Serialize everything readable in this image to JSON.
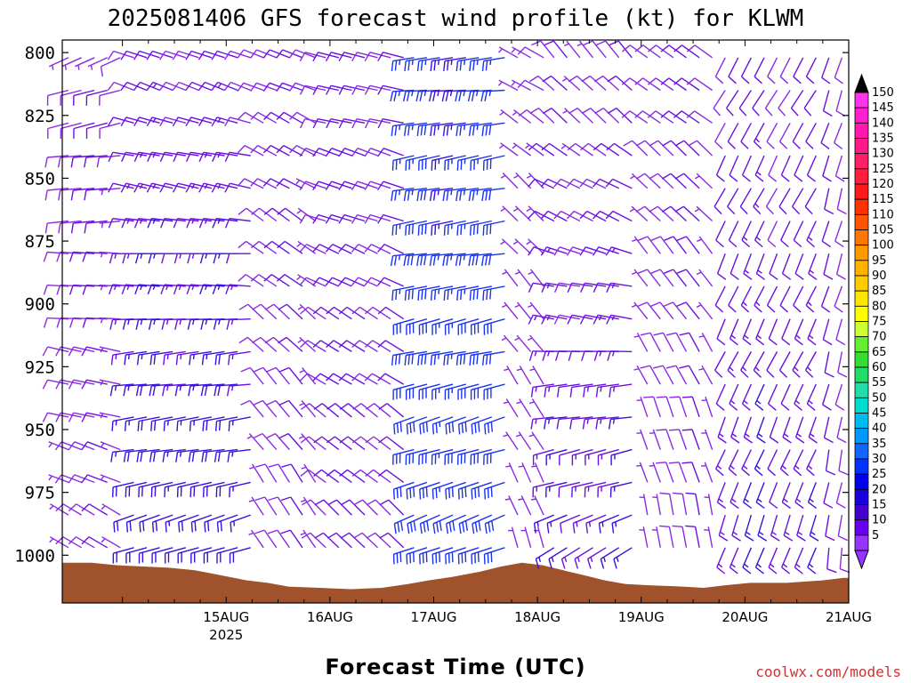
{
  "chart_data": {
    "type": "wind-barb-time-height",
    "title": "2025081406 GFS forecast wind profile (kt) for KLWM",
    "xlabel": "Forecast Time (UTC)",
    "ylabel": "",
    "credit": "coolwx.com/models",
    "x_ticks": [
      {
        "label": "15AUG",
        "sub": "2025",
        "day": 1
      },
      {
        "label": "16AUG",
        "sub": "",
        "day": 2
      },
      {
        "label": "17AUG",
        "sub": "",
        "day": 3
      },
      {
        "label": "18AUG",
        "sub": "",
        "day": 4
      },
      {
        "label": "19AUG",
        "sub": "",
        "day": 5
      },
      {
        "label": "20AUG",
        "sub": "",
        "day": 6
      },
      {
        "label": "21AUG",
        "sub": "",
        "day": 7
      }
    ],
    "x_range_days": [
      -0.58,
      7.0
    ],
    "pressure_levels": [
      800,
      825,
      850,
      875,
      900,
      925,
      950,
      975,
      1000
    ],
    "y_range_hpa": [
      795,
      1019
    ],
    "barb_levels_hpa": [
      802,
      815,
      828,
      841,
      854,
      867,
      880,
      893,
      906,
      919,
      932,
      945,
      958,
      971,
      984,
      997
    ],
    "colorbar": {
      "labels": [
        150,
        145,
        140,
        135,
        130,
        125,
        120,
        115,
        110,
        105,
        100,
        95,
        90,
        85,
        80,
        75,
        70,
        65,
        60,
        55,
        50,
        45,
        40,
        35,
        30,
        25,
        20,
        15,
        10,
        5
      ],
      "colors": [
        "#ff33ee",
        "#ff1fcf",
        "#ff17b0",
        "#ff1a8c",
        "#ff1f66",
        "#ff1f3d",
        "#ff1a1a",
        "#ff3300",
        "#ff5500",
        "#ff7700",
        "#ff9900",
        "#ffb300",
        "#ffcc00",
        "#ffe600",
        "#ffff00",
        "#ccff33",
        "#66ee33",
        "#33dd33",
        "#22dd66",
        "#22ddaa",
        "#00ddcc",
        "#00bbee",
        "#0099ff",
        "#1166ff",
        "#0033ff",
        "#0000ee",
        "#1a00dd",
        "#4400cc",
        "#6600ee",
        "#9933ff"
      ],
      "top_color": "#000000",
      "bottom_color": "#9933ff"
    },
    "terrain_color": "#a0522d",
    "terrain_hpa": [
      [
        -0.58,
        1003
      ],
      [
        -0.3,
        1003
      ],
      [
        -0.05,
        1004
      ],
      [
        0.2,
        1004.5
      ],
      [
        0.45,
        1005
      ],
      [
        0.7,
        1006
      ],
      [
        0.95,
        1008
      ],
      [
        1.2,
        1010
      ],
      [
        1.4,
        1011
      ],
      [
        1.6,
        1012.5
      ],
      [
        1.9,
        1013
      ],
      [
        2.2,
        1013.5
      ],
      [
        2.5,
        1013
      ],
      [
        2.75,
        1011.5
      ],
      [
        2.95,
        1010
      ],
      [
        3.2,
        1008.5
      ],
      [
        3.45,
        1006.5
      ],
      [
        3.65,
        1004.5
      ],
      [
        3.85,
        1003
      ],
      [
        4.05,
        1004
      ],
      [
        4.25,
        1006
      ],
      [
        4.45,
        1008
      ],
      [
        4.65,
        1010
      ],
      [
        4.85,
        1011.5
      ],
      [
        5.1,
        1012
      ],
      [
        5.4,
        1012.5
      ],
      [
        5.6,
        1013
      ],
      [
        5.8,
        1012
      ],
      [
        6.05,
        1011
      ],
      [
        6.4,
        1011
      ],
      [
        6.75,
        1010
      ],
      [
        6.95,
        1009
      ],
      [
        7.0,
        1009
      ]
    ],
    "wind": {
      "description": "Wind barbs (kt); values per time period and altitude band",
      "periods": [
        {
          "day_start": -0.58,
          "day_end": 0.05,
          "upper_dir": 250,
          "upper_spd": 10,
          "lower_dir": 300,
          "lower_spd": 8
        },
        {
          "day_start": 0.05,
          "day_end": 1.3,
          "upper_dir": 290,
          "upper_spd": 10,
          "lower_dir": 250,
          "lower_spd": 20
        },
        {
          "day_start": 1.3,
          "day_end": 1.9,
          "upper_dir": 290,
          "upper_spd": 10,
          "lower_dir": 330,
          "lower_spd": 8
        },
        {
          "day_start": 1.9,
          "day_end": 2.75,
          "upper_dir": 280,
          "upper_spd": 10,
          "lower_dir": 315,
          "lower_spd": 10
        },
        {
          "day_start": 2.75,
          "day_end": 3.75,
          "upper_dir": 265,
          "upper_spd": 25,
          "lower_dir": 250,
          "lower_spd": 30
        },
        {
          "day_start": 3.75,
          "day_end": 4.1,
          "upper_dir": 300,
          "upper_spd": 8,
          "lower_dir": 340,
          "lower_spd": 5
        },
        {
          "day_start": 4.1,
          "day_end": 5.0,
          "upper_dir": 320,
          "upper_spd": 8,
          "lower_dir": 240,
          "lower_spd": 15
        },
        {
          "day_start": 5.0,
          "day_end": 5.75,
          "upper_dir": 300,
          "upper_spd": 10,
          "lower_dir": 350,
          "lower_spd": 8
        },
        {
          "day_start": 5.75,
          "day_end": 6.75,
          "upper_dir": 210,
          "upper_spd": 10,
          "lower_dir": 200,
          "lower_spd": 15
        },
        {
          "day_start": 6.75,
          "day_end": 7.0,
          "upper_dir": 200,
          "upper_spd": 10,
          "lower_dir": 190,
          "lower_spd": 10
        }
      ]
    }
  }
}
